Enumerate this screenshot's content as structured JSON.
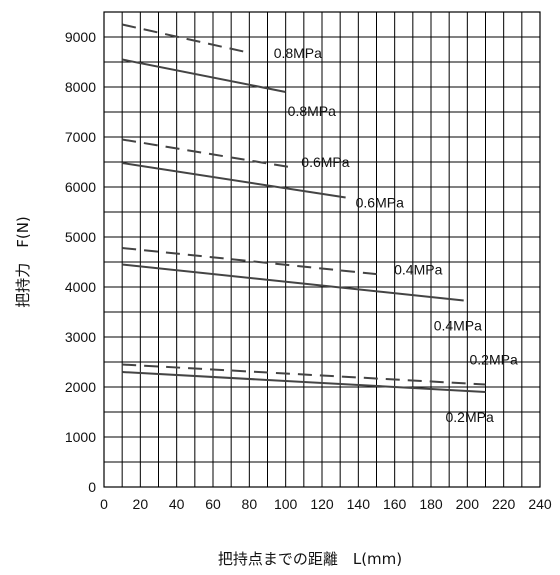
{
  "chart_data": {
    "type": "line",
    "title": "",
    "xlabel": "把持点までの距離　L(mm)",
    "ylabel": "把持力　F(N)",
    "xlim": [
      0,
      240
    ],
    "ylim": [
      0,
      9500
    ],
    "x_ticks": [
      0,
      20,
      40,
      60,
      80,
      100,
      120,
      140,
      160,
      180,
      200,
      220,
      240
    ],
    "y_ticks": [
      0,
      1000,
      2000,
      3000,
      4000,
      5000,
      6000,
      7000,
      8000,
      9000
    ],
    "grid": true,
    "series": [
      {
        "name": "0.8MPa",
        "style": "dashed",
        "points": [
          [
            10,
            9250
          ],
          [
            78,
            8700
          ]
        ]
      },
      {
        "name": "0.8MPa",
        "style": "solid",
        "points": [
          [
            10,
            8550
          ],
          [
            100,
            7900
          ]
        ]
      },
      {
        "name": "0.6MPa",
        "style": "dashed",
        "points": [
          [
            10,
            6950
          ],
          [
            102,
            6400
          ]
        ]
      },
      {
        "name": "0.6MPa",
        "style": "solid",
        "points": [
          [
            10,
            6480
          ],
          [
            133,
            5790
          ]
        ]
      },
      {
        "name": "0.4MPa",
        "style": "dashed",
        "points": [
          [
            10,
            4780
          ],
          [
            152,
            4250
          ]
        ]
      },
      {
        "name": "0.4MPa",
        "style": "solid",
        "points": [
          [
            10,
            4450
          ],
          [
            198,
            3730
          ]
        ]
      },
      {
        "name": "0.2MPa",
        "style": "dashed",
        "points": [
          [
            10,
            2450
          ],
          [
            210,
            2050
          ]
        ]
      },
      {
        "name": "0.2MPa",
        "style": "solid",
        "points": [
          [
            10,
            2300
          ],
          [
            210,
            1900
          ]
        ]
      }
    ],
    "colors": {
      "line": "#444444",
      "grid": "#000000"
    }
  }
}
